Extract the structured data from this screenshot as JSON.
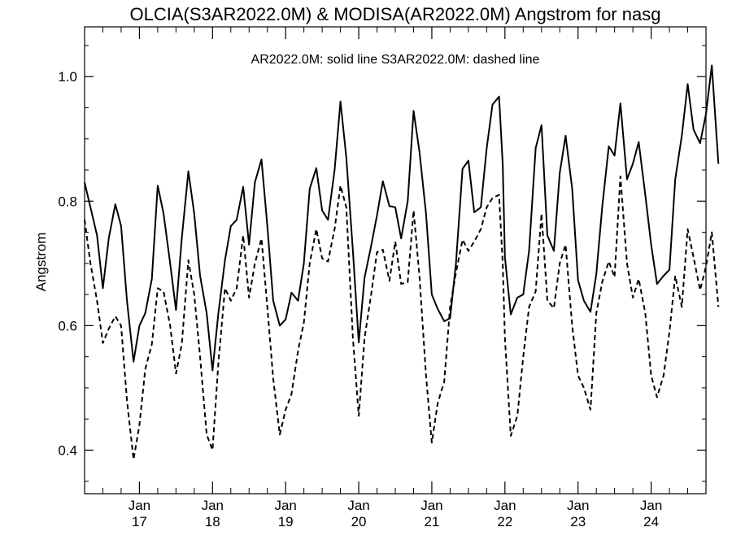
{
  "chart_data": {
    "type": "line",
    "title": "OLCIA(S3AR2022.0M) & MODISA(AR2022.0M)  Angstrom for nasg",
    "annotation": "AR2022.0M: solid line   S3AR2022.0M: dashed line",
    "xlabel": "",
    "ylabel": "Angstrom",
    "ylim": [
      0.33,
      1.08
    ],
    "xlim": [
      2016.25,
      2024.75
    ],
    "grid": false,
    "y_ticks": [
      {
        "value": 0.4,
        "label": "0.4"
      },
      {
        "value": 0.6,
        "label": "0.6"
      },
      {
        "value": 0.8,
        "label": "0.8"
      },
      {
        "value": 1.0,
        "label": "1.0"
      }
    ],
    "x_ticks": [
      {
        "value": 2017,
        "month": "Jan",
        "year": "17"
      },
      {
        "value": 2018,
        "month": "Jan",
        "year": "18"
      },
      {
        "value": 2019,
        "month": "Jan",
        "year": "19"
      },
      {
        "value": 2020,
        "month": "Jan",
        "year": "20"
      },
      {
        "value": 2021,
        "month": "Jan",
        "year": "21"
      },
      {
        "value": 2022,
        "month": "Jan",
        "year": "22"
      },
      {
        "value": 2023,
        "month": "Jan",
        "year": "23"
      },
      {
        "value": 2024,
        "month": "Jan",
        "year": "24"
      }
    ],
    "series": [
      {
        "name": "AR2022.0M",
        "style": "solid",
        "color": "#000000",
        "points": [
          [
            2016.25,
            0.83
          ],
          [
            2016.33,
            0.79
          ],
          [
            2016.42,
            0.745
          ],
          [
            2016.5,
            0.66
          ],
          [
            2016.58,
            0.74
          ],
          [
            2016.67,
            0.795
          ],
          [
            2016.75,
            0.76
          ],
          [
            2016.83,
            0.64
          ],
          [
            2016.92,
            0.542
          ],
          [
            2017.0,
            0.6
          ],
          [
            2017.08,
            0.62
          ],
          [
            2017.17,
            0.675
          ],
          [
            2017.25,
            0.825
          ],
          [
            2017.33,
            0.78
          ],
          [
            2017.42,
            0.7
          ],
          [
            2017.5,
            0.625
          ],
          [
            2017.58,
            0.74
          ],
          [
            2017.67,
            0.848
          ],
          [
            2017.75,
            0.78
          ],
          [
            2017.83,
            0.68
          ],
          [
            2017.92,
            0.62
          ],
          [
            2018.0,
            0.528
          ],
          [
            2018.08,
            0.62
          ],
          [
            2018.17,
            0.705
          ],
          [
            2018.25,
            0.76
          ],
          [
            2018.33,
            0.77
          ],
          [
            2018.42,
            0.823
          ],
          [
            2018.5,
            0.73
          ],
          [
            2018.58,
            0.83
          ],
          [
            2018.67,
            0.867
          ],
          [
            2018.75,
            0.76
          ],
          [
            2018.83,
            0.64
          ],
          [
            2018.92,
            0.6
          ],
          [
            2019.0,
            0.61
          ],
          [
            2019.08,
            0.653
          ],
          [
            2019.17,
            0.64
          ],
          [
            2019.25,
            0.7
          ],
          [
            2019.33,
            0.82
          ],
          [
            2019.42,
            0.853
          ],
          [
            2019.5,
            0.785
          ],
          [
            2019.58,
            0.77
          ],
          [
            2019.67,
            0.85
          ],
          [
            2019.75,
            0.96
          ],
          [
            2019.83,
            0.87
          ],
          [
            2019.92,
            0.72
          ],
          [
            2020.0,
            0.573
          ],
          [
            2020.08,
            0.677
          ],
          [
            2020.17,
            0.728
          ],
          [
            2020.25,
            0.777
          ],
          [
            2020.33,
            0.832
          ],
          [
            2020.42,
            0.792
          ],
          [
            2020.5,
            0.79
          ],
          [
            2020.58,
            0.74
          ],
          [
            2020.67,
            0.8
          ],
          [
            2020.75,
            0.945
          ],
          [
            2020.83,
            0.88
          ],
          [
            2020.92,
            0.78
          ],
          [
            2021.0,
            0.65
          ],
          [
            2021.08,
            0.627
          ],
          [
            2021.17,
            0.607
          ],
          [
            2021.25,
            0.612
          ],
          [
            2021.33,
            0.7
          ],
          [
            2021.42,
            0.852
          ],
          [
            2021.5,
            0.865
          ],
          [
            2021.58,
            0.782
          ],
          [
            2021.67,
            0.79
          ],
          [
            2021.75,
            0.885
          ],
          [
            2021.83,
            0.955
          ],
          [
            2021.92,
            0.968
          ],
          [
            2021.97,
            0.86
          ],
          [
            2022.0,
            0.71
          ],
          [
            2022.08,
            0.618
          ],
          [
            2022.17,
            0.645
          ],
          [
            2022.25,
            0.65
          ],
          [
            2022.33,
            0.72
          ],
          [
            2022.42,
            0.885
          ],
          [
            2022.5,
            0.922
          ],
          [
            2022.58,
            0.745
          ],
          [
            2022.67,
            0.72
          ],
          [
            2022.75,
            0.845
          ],
          [
            2022.83,
            0.905
          ],
          [
            2022.92,
            0.82
          ],
          [
            2023.0,
            0.673
          ],
          [
            2023.08,
            0.64
          ],
          [
            2023.17,
            0.622
          ],
          [
            2023.25,
            0.683
          ],
          [
            2023.33,
            0.79
          ],
          [
            2023.42,
            0.888
          ],
          [
            2023.5,
            0.873
          ],
          [
            2023.58,
            0.957
          ],
          [
            2023.67,
            0.835
          ],
          [
            2023.75,
            0.86
          ],
          [
            2023.83,
            0.895
          ],
          [
            2023.92,
            0.81
          ],
          [
            2024.0,
            0.73
          ],
          [
            2024.08,
            0.667
          ],
          [
            2024.17,
            0.68
          ],
          [
            2024.25,
            0.69
          ],
          [
            2024.33,
            0.835
          ],
          [
            2024.42,
            0.905
          ],
          [
            2024.5,
            0.988
          ],
          [
            2024.58,
            0.915
          ],
          [
            2024.67,
            0.893
          ],
          [
            2024.75,
            0.94
          ],
          [
            2024.83,
            1.018
          ],
          [
            2024.92,
            0.86
          ]
        ]
      },
      {
        "name": "S3AR2022.0M",
        "style": "dashed",
        "color": "#000000",
        "points": [
          [
            2016.25,
            0.77
          ],
          [
            2016.33,
            0.7
          ],
          [
            2016.42,
            0.64
          ],
          [
            2016.5,
            0.572
          ],
          [
            2016.58,
            0.595
          ],
          [
            2016.67,
            0.615
          ],
          [
            2016.75,
            0.6
          ],
          [
            2016.83,
            0.48
          ],
          [
            2016.92,
            0.385
          ],
          [
            2017.0,
            0.44
          ],
          [
            2017.08,
            0.53
          ],
          [
            2017.17,
            0.57
          ],
          [
            2017.25,
            0.66
          ],
          [
            2017.33,
            0.655
          ],
          [
            2017.42,
            0.6
          ],
          [
            2017.5,
            0.523
          ],
          [
            2017.58,
            0.57
          ],
          [
            2017.67,
            0.705
          ],
          [
            2017.75,
            0.65
          ],
          [
            2017.83,
            0.55
          ],
          [
            2017.92,
            0.425
          ],
          [
            2018.0,
            0.4
          ],
          [
            2018.08,
            0.54
          ],
          [
            2018.17,
            0.66
          ],
          [
            2018.25,
            0.64
          ],
          [
            2018.33,
            0.66
          ],
          [
            2018.42,
            0.745
          ],
          [
            2018.5,
            0.645
          ],
          [
            2018.58,
            0.7
          ],
          [
            2018.67,
            0.74
          ],
          [
            2018.75,
            0.63
          ],
          [
            2018.83,
            0.515
          ],
          [
            2018.92,
            0.425
          ],
          [
            2019.0,
            0.465
          ],
          [
            2019.08,
            0.49
          ],
          [
            2019.17,
            0.56
          ],
          [
            2019.25,
            0.605
          ],
          [
            2019.33,
            0.7
          ],
          [
            2019.42,
            0.755
          ],
          [
            2019.5,
            0.708
          ],
          [
            2019.58,
            0.703
          ],
          [
            2019.67,
            0.755
          ],
          [
            2019.75,
            0.825
          ],
          [
            2019.83,
            0.79
          ],
          [
            2019.92,
            0.58
          ],
          [
            2020.0,
            0.455
          ],
          [
            2020.08,
            0.58
          ],
          [
            2020.17,
            0.65
          ],
          [
            2020.25,
            0.718
          ],
          [
            2020.33,
            0.722
          ],
          [
            2020.42,
            0.672
          ],
          [
            2020.5,
            0.735
          ],
          [
            2020.58,
            0.667
          ],
          [
            2020.67,
            0.67
          ],
          [
            2020.75,
            0.785
          ],
          [
            2020.83,
            0.68
          ],
          [
            2020.92,
            0.52
          ],
          [
            2021.0,
            0.412
          ],
          [
            2021.08,
            0.475
          ],
          [
            2021.17,
            0.51
          ],
          [
            2021.25,
            0.63
          ],
          [
            2021.33,
            0.685
          ],
          [
            2021.42,
            0.738
          ],
          [
            2021.5,
            0.72
          ],
          [
            2021.58,
            0.735
          ],
          [
            2021.67,
            0.755
          ],
          [
            2021.75,
            0.79
          ],
          [
            2021.83,
            0.805
          ],
          [
            2021.92,
            0.81
          ],
          [
            2021.97,
            0.7
          ],
          [
            2022.0,
            0.58
          ],
          [
            2022.08,
            0.423
          ],
          [
            2022.17,
            0.455
          ],
          [
            2022.25,
            0.55
          ],
          [
            2022.33,
            0.63
          ],
          [
            2022.42,
            0.655
          ],
          [
            2022.5,
            0.78
          ],
          [
            2022.58,
            0.64
          ],
          [
            2022.67,
            0.628
          ],
          [
            2022.75,
            0.7
          ],
          [
            2022.83,
            0.73
          ],
          [
            2022.92,
            0.6
          ],
          [
            2023.0,
            0.52
          ],
          [
            2023.08,
            0.5
          ],
          [
            2023.17,
            0.465
          ],
          [
            2023.25,
            0.62
          ],
          [
            2023.33,
            0.67
          ],
          [
            2023.42,
            0.703
          ],
          [
            2023.5,
            0.678
          ],
          [
            2023.58,
            0.84
          ],
          [
            2023.67,
            0.7
          ],
          [
            2023.75,
            0.645
          ],
          [
            2023.83,
            0.675
          ],
          [
            2023.92,
            0.62
          ],
          [
            2024.0,
            0.52
          ],
          [
            2024.08,
            0.485
          ],
          [
            2024.17,
            0.52
          ],
          [
            2024.25,
            0.59
          ],
          [
            2024.33,
            0.68
          ],
          [
            2024.42,
            0.63
          ],
          [
            2024.5,
            0.755
          ],
          [
            2024.58,
            0.71
          ],
          [
            2024.67,
            0.657
          ],
          [
            2024.75,
            0.695
          ],
          [
            2024.83,
            0.75
          ],
          [
            2024.92,
            0.63
          ]
        ]
      }
    ]
  }
}
